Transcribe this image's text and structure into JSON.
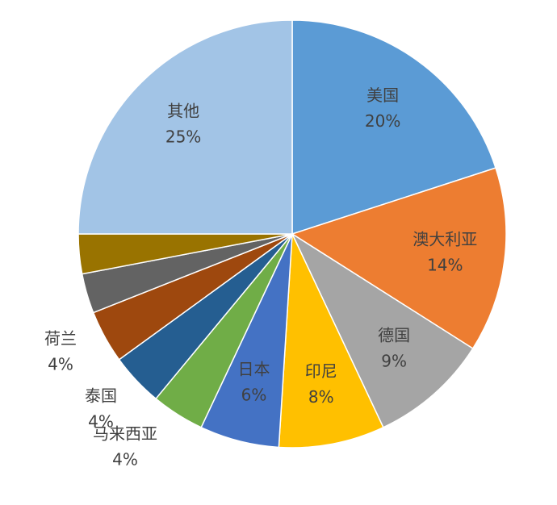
{
  "chart_data": {
    "type": "pie",
    "categories": [
      "美国",
      "澳大利亚",
      "德国",
      "印尼",
      "日本",
      "马来西亚",
      "泰国",
      "荷兰",
      null,
      null,
      "其他"
    ],
    "values": [
      20,
      14,
      9,
      8,
      6,
      4,
      4,
      4,
      3,
      3,
      25
    ],
    "value_labels": [
      "20%",
      "14%",
      "9%",
      "8%",
      "6%",
      "4%",
      "4%",
      "4%",
      null,
      null,
      "25%"
    ],
    "colors": [
      "#5b9bd5",
      "#ed7d31",
      "#a5a5a5",
      "#ffc000",
      "#4472c4",
      "#70ad47",
      "#255e91",
      "#9e480e",
      "#636363",
      "#997300",
      "#a2c4e6"
    ]
  }
}
